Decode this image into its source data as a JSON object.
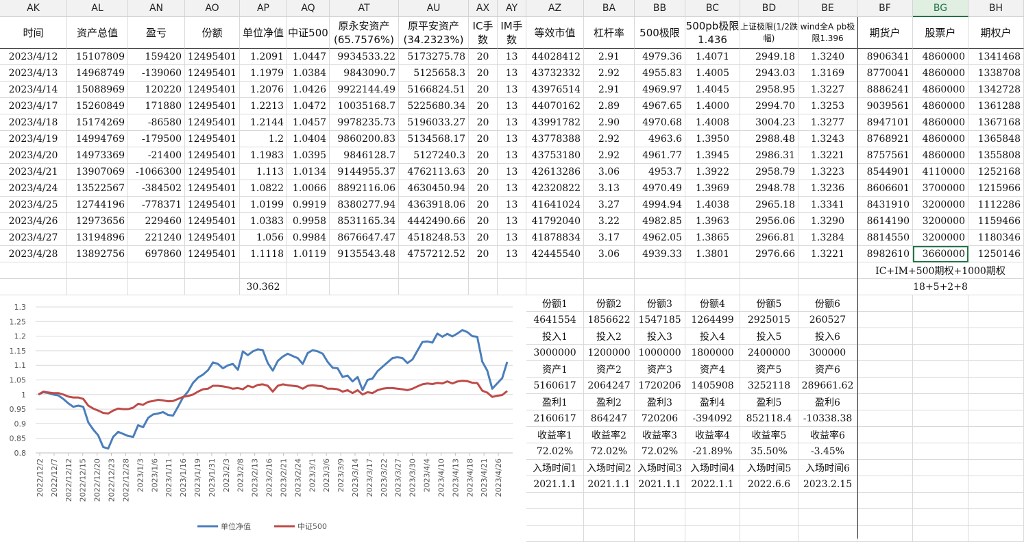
{
  "columns": [
    "AK",
    "AL",
    "AN",
    "AO",
    "AP",
    "AQ",
    "AT",
    "AU",
    "AX",
    "AY",
    "AZ",
    "BA",
    "BB",
    "BC",
    "BD",
    "BE",
    "BF",
    "BG",
    "BH"
  ],
  "selected_column": "BG",
  "header_row": [
    "时间",
    "资产总值",
    "盈亏",
    "份额",
    "单位净值",
    "中证500",
    "原永安资产(65.7576%)",
    "原平安资产(34.2323%)",
    "IC手数",
    "IM手数",
    "等效市值",
    "杠杆率",
    "500极限",
    "500pb极限1.436",
    "上证极限(1/2跌幅)",
    "wind全A pb极限1.396",
    "期货户",
    "股票户",
    "期权户"
  ],
  "rows": [
    [
      "2023/4/12",
      "15107809",
      "159420",
      "12495401",
      "1.2091",
      "1.0447",
      "9934533.22",
      "5173275.78",
      "20",
      "13",
      "44028412",
      "2.91",
      "4979.36",
      "1.4071",
      "2949.18",
      "1.3240",
      "8906341",
      "4860000",
      "1341468"
    ],
    [
      "2023/4/13",
      "14968749",
      "-139060",
      "12495401",
      "1.1979",
      "1.0384",
      "9843090.7",
      "5125658.3",
      "20",
      "13",
      "43732332",
      "2.92",
      "4955.83",
      "1.4005",
      "2943.03",
      "1.3169",
      "8770041",
      "4860000",
      "1338708"
    ],
    [
      "2023/4/14",
      "15088969",
      "120220",
      "12495401",
      "1.2076",
      "1.0426",
      "9922144.49",
      "5166824.51",
      "20",
      "13",
      "43976514",
      "2.91",
      "4969.97",
      "1.4045",
      "2958.95",
      "1.3227",
      "8886241",
      "4860000",
      "1342728"
    ],
    [
      "2023/4/17",
      "15260849",
      "171880",
      "12495401",
      "1.2213",
      "1.0472",
      "10035168.7",
      "5225680.34",
      "20",
      "13",
      "44070162",
      "2.89",
      "4967.65",
      "1.4000",
      "2994.70",
      "1.3253",
      "9039561",
      "4860000",
      "1361288"
    ],
    [
      "2023/4/18",
      "15174269",
      "-86580",
      "12495401",
      "1.2144",
      "1.0457",
      "9978235.73",
      "5196033.27",
      "20",
      "13",
      "43991782",
      "2.90",
      "4970.68",
      "1.4008",
      "3004.23",
      "1.3277",
      "8947101",
      "4860000",
      "1367168"
    ],
    [
      "2023/4/19",
      "14994769",
      "-179500",
      "12495401",
      "1.2",
      "1.0404",
      "9860200.83",
      "5134568.17",
      "20",
      "13",
      "43778388",
      "2.92",
      "4963.6",
      "1.3950",
      "2988.48",
      "1.3243",
      "8768921",
      "4860000",
      "1365848"
    ],
    [
      "2023/4/20",
      "14973369",
      "-21400",
      "12495401",
      "1.1983",
      "1.0395",
      "9846128.7",
      "5127240.3",
      "20",
      "13",
      "43753180",
      "2.92",
      "4961.77",
      "1.3945",
      "2986.31",
      "1.3221",
      "8757561",
      "4860000",
      "1355808"
    ],
    [
      "2023/4/21",
      "13907069",
      "-1066300",
      "12495401",
      "1.113",
      "1.0134",
      "9144955.37",
      "4762113.63",
      "20",
      "13",
      "42613286",
      "3.06",
      "4953.7",
      "1.3922",
      "2958.79",
      "1.3223",
      "8544901",
      "4110000",
      "1252168"
    ],
    [
      "2023/4/24",
      "13522567",
      "-384502",
      "12495401",
      "1.0822",
      "1.0066",
      "8892116.06",
      "4630450.94",
      "20",
      "13",
      "42320822",
      "3.13",
      "4970.49",
      "1.3969",
      "2948.78",
      "1.3236",
      "8606601",
      "3700000",
      "1215966"
    ],
    [
      "2023/4/25",
      "12744196",
      "-778371",
      "12495401",
      "1.0199",
      "0.9919",
      "8380277.94",
      "4363918.06",
      "20",
      "13",
      "41641024",
      "3.27",
      "4994.94",
      "1.4038",
      "2965.18",
      "1.3341",
      "8431910",
      "3200000",
      "1112286"
    ],
    [
      "2023/4/26",
      "12973656",
      "229460",
      "12495401",
      "1.0383",
      "0.9958",
      "8531165.34",
      "4442490.66",
      "20",
      "13",
      "41792040",
      "3.22",
      "4982.85",
      "1.3963",
      "2956.06",
      "1.3290",
      "8614190",
      "3200000",
      "1159466"
    ],
    [
      "2023/4/27",
      "13194896",
      "221240",
      "12495401",
      "1.056",
      "0.9984",
      "8676647.47",
      "4518248.53",
      "20",
      "13",
      "41878834",
      "3.17",
      "4962.05",
      "1.3865",
      "2966.81",
      "1.3284",
      "8814550",
      "3200000",
      "1180346"
    ],
    [
      "2023/4/28",
      "13892756",
      "697860",
      "12495401",
      "1.1118",
      "1.0119",
      "9135543.48",
      "4757212.52",
      "20",
      "13",
      "42445540",
      "3.06",
      "4939.33",
      "1.3801",
      "2976.66",
      "1.3221",
      "8982610",
      "3660000",
      "1250146"
    ]
  ],
  "ap_total": "30.362",
  "note1": "IC+IM+500期权+1000期权",
  "note2": "18+5+2+8",
  "investor_block": [
    [
      "份额1",
      "份额2",
      "份额3",
      "份额4",
      "份额5",
      "份额6"
    ],
    [
      "4641554",
      "1856622",
      "1547185",
      "1264499",
      "2925015",
      "260527"
    ],
    [
      "投入1",
      "投入2",
      "投入3",
      "投入4",
      "投入5",
      "投入6"
    ],
    [
      "3000000",
      "1200000",
      "1000000",
      "1800000",
      "2400000",
      "300000"
    ],
    [
      "资产1",
      "资产2",
      "资产3",
      "资产4",
      "资产5",
      "资产6"
    ],
    [
      "5160617",
      "2064247",
      "1720206",
      "1405908",
      "3252118",
      "289661.62"
    ],
    [
      "盈利1",
      "盈利2",
      "盈利3",
      "盈利4",
      "盈利5",
      "盈利6"
    ],
    [
      "2160617",
      "864247",
      "720206",
      "-394092",
      "852118.4",
      "-10338.38"
    ],
    [
      "收益率1",
      "收益率2",
      "收益率3",
      "收益率4",
      "收益率5",
      "收益率6"
    ],
    [
      "72.02%",
      "72.02%",
      "72.02%",
      "-21.89%",
      "35.50%",
      "-3.45%"
    ],
    [
      "入场时间1",
      "入场时间2",
      "入场时间3",
      "入场时间4",
      "入场时间5",
      "入场时间6"
    ],
    [
      "2021.1.1",
      "2021.1.1",
      "2021.1.1",
      "2022.1.1",
      "2022.6.6",
      "2023.2.15"
    ]
  ],
  "chart_data": {
    "type": "line",
    "title": "",
    "xlabel": "",
    "ylabel": "",
    "ylim": [
      0.8,
      1.3
    ],
    "yticks": [
      "0.8",
      "0.85",
      "0.9",
      "0.95",
      "1",
      "1.05",
      "1.1",
      "1.15",
      "1.2",
      "1.25",
      "1.3"
    ],
    "grid": true,
    "legend": "bottom",
    "x_tick_labels": [
      "2022/12/2",
      "2022/12/7",
      "2022/12/12",
      "2022/12/15",
      "2022/12/20",
      "2022/12/23",
      "2022/12/28",
      "2023/1/3",
      "2023/1/6",
      "2023/1/11",
      "2023/1/16",
      "2023/1/19",
      "2023/1/31",
      "2023/2/3",
      "2023/2/8",
      "2023/2/13",
      "2023/2/16",
      "2023/2/21",
      "2023/2/24",
      "2023/3/1",
      "2023/3/6",
      "2023/3/9",
      "2023/3/14",
      "2023/3/17",
      "2023/3/22",
      "2023/3/27",
      "2023/3/30",
      "2023/4/4",
      "2023/4/10",
      "2023/4/13",
      "2023/4/18",
      "2023/4/21",
      "2023/4/26"
    ],
    "series": [
      {
        "name": "单位净值",
        "color": "#4a7ebb",
        "values": [
          1.0,
          1.008,
          1.005,
          1.0,
          0.997,
          0.985,
          0.97,
          0.958,
          0.962,
          0.958,
          0.905,
          0.88,
          0.86,
          0.82,
          0.815,
          0.855,
          0.872,
          0.865,
          0.858,
          0.855,
          0.895,
          0.888,
          0.92,
          0.932,
          0.935,
          0.94,
          0.93,
          0.928,
          0.958,
          0.99,
          1.01,
          1.04,
          1.058,
          1.068,
          1.083,
          1.11,
          1.105,
          1.09,
          1.1,
          1.105,
          1.085,
          1.148,
          1.135,
          1.148,
          1.155,
          1.152,
          1.108,
          1.082,
          1.115,
          1.13,
          1.14,
          1.132,
          1.125,
          1.105,
          1.142,
          1.152,
          1.148,
          1.14,
          1.112,
          1.092,
          1.09,
          1.06,
          1.065,
          1.045,
          1.06,
          1.015,
          1.05,
          1.055,
          1.08,
          1.095,
          1.11,
          1.125,
          1.128,
          1.125,
          1.108,
          1.12,
          1.15,
          1.18,
          1.182,
          1.178,
          1.209,
          1.198,
          1.208,
          1.199,
          1.209,
          1.221,
          1.214,
          1.2,
          1.198,
          1.113,
          1.082,
          1.02,
          1.038,
          1.056,
          1.112
        ]
      },
      {
        "name": "中证500",
        "color": "#be4b48",
        "values": [
          1.0,
          1.01,
          1.007,
          1.005,
          1.005,
          1.0,
          0.993,
          0.99,
          0.99,
          0.985,
          0.962,
          0.952,
          0.945,
          0.937,
          0.935,
          0.945,
          0.952,
          0.95,
          0.95,
          0.955,
          0.968,
          0.965,
          0.975,
          0.978,
          0.982,
          0.98,
          0.977,
          0.978,
          0.985,
          0.992,
          0.995,
          1.0,
          1.01,
          1.018,
          1.02,
          1.03,
          1.03,
          1.028,
          1.025,
          1.02,
          1.022,
          1.018,
          1.03,
          1.025,
          1.033,
          1.035,
          1.03,
          1.01,
          1.03,
          1.035,
          1.032,
          1.03,
          1.028,
          1.02,
          1.03,
          1.032,
          1.03,
          1.028,
          1.02,
          1.02,
          1.018,
          1.01,
          1.015,
          1.005,
          1.015,
          1.0,
          1.008,
          1.005,
          1.015,
          1.02,
          1.022,
          1.022,
          1.02,
          1.018,
          1.015,
          1.02,
          1.028,
          1.035,
          1.038,
          1.036,
          1.04,
          1.038,
          1.045,
          1.038,
          1.0447,
          1.0472,
          1.0457,
          1.0404,
          1.0395,
          1.0134,
          1.0066,
          0.9919,
          0.9958,
          0.9984,
          1.0119
        ]
      }
    ]
  }
}
